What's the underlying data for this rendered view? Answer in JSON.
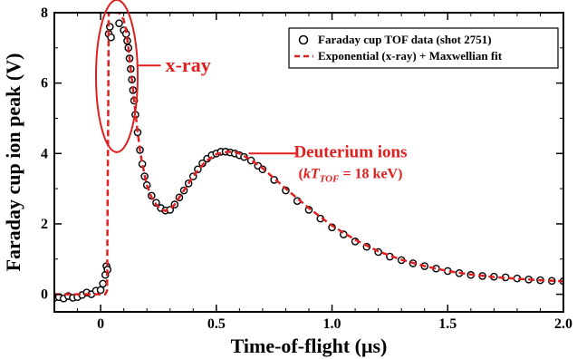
{
  "chart_data": {
    "type": "scatter",
    "xlabel": "Time-of-flight (μs)",
    "ylabel": "Faraday cup ion peak (V)",
    "xlim": [
      -0.2,
      2.0
    ],
    "ylim": [
      -0.5,
      8
    ],
    "xticks": [
      {
        "v": 0,
        "label": "0"
      },
      {
        "v": 0.5,
        "label": "0.5"
      },
      {
        "v": 1.0,
        "label": "1.0"
      },
      {
        "v": 1.5,
        "label": "1.5"
      },
      {
        "v": 2.0,
        "label": "2.0"
      }
    ],
    "yticks": [
      {
        "v": 0,
        "label": "0"
      },
      {
        "v": 2,
        "label": "2"
      },
      {
        "v": 4,
        "label": "4"
      },
      {
        "v": 6,
        "label": "6"
      },
      {
        "v": 8,
        "label": "8"
      }
    ],
    "legend": {
      "position": "top-right",
      "entries": [
        {
          "label": "Faraday cup TOF data (shot 2751)",
          "marker": "open-circle",
          "color": "#000000"
        },
        {
          "label": "Exponential (x-ray) + Maxwellian fit",
          "marker": "dashed-line",
          "color": "#e02020"
        }
      ]
    },
    "annotations": {
      "xray": {
        "text": "x-ray",
        "color": "#e02020"
      },
      "deuterium": {
        "line1": "Deuterium ions",
        "kT": "kT",
        "sub": "TOF",
        "rest": " = 18 keV",
        "open": "(",
        "close": ")",
        "color": "#e02020"
      }
    },
    "series": [
      {
        "name": "Faraday cup TOF data (shot 2751)",
        "kind": "scatter",
        "x": [
          -0.2,
          -0.18,
          -0.16,
          -0.14,
          -0.12,
          -0.1,
          -0.08,
          -0.06,
          -0.04,
          -0.02,
          0.0,
          0.01,
          0.02,
          0.025,
          0.03,
          0.035,
          0.04,
          0.045,
          0.08,
          0.1,
          0.11,
          0.115,
          0.12,
          0.125,
          0.13,
          0.135,
          0.14,
          0.145,
          0.15,
          0.16,
          0.17,
          0.18,
          0.19,
          0.2,
          0.22,
          0.24,
          0.26,
          0.28,
          0.3,
          0.32,
          0.34,
          0.36,
          0.38,
          0.4,
          0.42,
          0.44,
          0.46,
          0.48,
          0.5,
          0.52,
          0.54,
          0.56,
          0.58,
          0.6,
          0.62,
          0.65,
          0.68,
          0.7,
          0.75,
          0.8,
          0.85,
          0.9,
          0.95,
          1.0,
          1.05,
          1.1,
          1.15,
          1.2,
          1.25,
          1.3,
          1.35,
          1.4,
          1.45,
          1.5,
          1.55,
          1.6,
          1.65,
          1.7,
          1.75,
          1.8,
          1.85,
          1.9,
          1.95,
          2.0
        ],
        "y": [
          -0.1,
          -0.08,
          -0.12,
          -0.05,
          -0.1,
          -0.08,
          -0.02,
          0.05,
          0.0,
          0.1,
          0.12,
          0.3,
          0.55,
          0.8,
          0.7,
          7.4,
          7.6,
          7.3,
          7.7,
          7.5,
          7.4,
          7.2,
          7.0,
          6.7,
          6.4,
          6.1,
          5.8,
          5.5,
          5.1,
          4.6,
          4.1,
          3.7,
          3.35,
          3.1,
          2.8,
          2.6,
          2.45,
          2.38,
          2.4,
          2.55,
          2.75,
          2.95,
          3.15,
          3.35,
          3.55,
          3.72,
          3.85,
          3.95,
          4.0,
          4.05,
          4.05,
          4.03,
          4.0,
          3.95,
          3.9,
          3.8,
          3.65,
          3.55,
          3.25,
          2.95,
          2.65,
          2.4,
          2.15,
          1.9,
          1.7,
          1.5,
          1.35,
          1.2,
          1.07,
          0.97,
          0.88,
          0.8,
          0.73,
          0.66,
          0.6,
          0.55,
          0.52,
          0.5,
          0.48,
          0.45,
          0.42,
          0.4,
          0.38,
          0.37
        ]
      },
      {
        "name": "Exponential (x-ray) + Maxwellian fit",
        "kind": "line",
        "x": [
          -0.2,
          0.0,
          0.02,
          0.028,
          0.032,
          0.035,
          0.05,
          0.08,
          0.1,
          0.11,
          0.12,
          0.13,
          0.14,
          0.15,
          0.16,
          0.17,
          0.18,
          0.2,
          0.22,
          0.24,
          0.26,
          0.28,
          0.3,
          0.32,
          0.35,
          0.38,
          0.4,
          0.45,
          0.5,
          0.55,
          0.58,
          0.6,
          0.65,
          0.7,
          0.8,
          0.9,
          1.0,
          1.1,
          1.2,
          1.3,
          1.4,
          1.5,
          1.6,
          1.7,
          1.8,
          1.9,
          2.0
        ],
        "y": [
          0.0,
          0.0,
          0.0,
          0.1,
          4.5,
          8.0,
          8.0,
          8.0,
          7.8,
          7.5,
          7.0,
          6.4,
          5.8,
          5.2,
          4.6,
          4.1,
          3.7,
          3.1,
          2.75,
          2.55,
          2.42,
          2.37,
          2.42,
          2.55,
          2.85,
          3.15,
          3.35,
          3.75,
          3.98,
          4.05,
          4.04,
          4.0,
          3.82,
          3.58,
          3.0,
          2.45,
          1.95,
          1.55,
          1.22,
          0.98,
          0.8,
          0.66,
          0.56,
          0.49,
          0.44,
          0.4,
          0.37
        ]
      }
    ]
  }
}
